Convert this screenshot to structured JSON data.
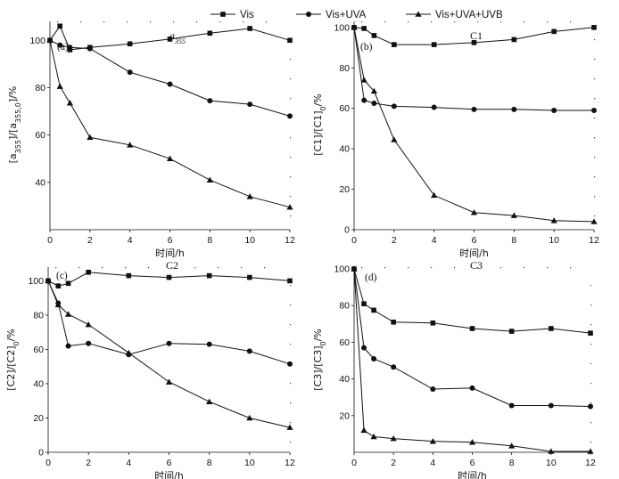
{
  "legend": [
    {
      "name": "Vis",
      "marker": "square"
    },
    {
      "name": "Vis+UVA",
      "marker": "circle"
    },
    {
      "name": "Vis+UVA+UVB",
      "marker": "triangle"
    }
  ],
  "chart_data": [
    {
      "type": "line",
      "panel": "(a)",
      "title": "a355",
      "title_main": "a",
      "title_sub": "355",
      "xlabel": "时间/h",
      "ylabel_parts": [
        {
          "t": "[a",
          "italic_idx": 1
        },
        {
          "t": "355",
          "sub": true
        },
        {
          "t": "]/[a"
        },
        {
          "t": "355,0",
          "sub": true
        },
        {
          "t": "]/%"
        }
      ],
      "xlim": [
        0,
        12
      ],
      "ylim": [
        20,
        108
      ],
      "xticks": [
        0,
        2,
        4,
        6,
        8,
        10,
        12
      ],
      "yticks": [
        40,
        60,
        80,
        100
      ],
      "series": [
        {
          "name": "Vis",
          "marker": "square",
          "x": [
            0,
            0.5,
            1,
            2,
            4,
            6,
            8,
            10,
            12
          ],
          "values": [
            100,
            106,
            96,
            97,
            98.5,
            100.5,
            103,
            105,
            100
          ]
        },
        {
          "name": "Vis+UVA",
          "marker": "circle",
          "x": [
            0,
            0.5,
            1,
            2,
            4,
            6,
            8,
            10,
            12
          ],
          "values": [
            100,
            98,
            97,
            96.5,
            86.5,
            81.5,
            74.5,
            73,
            68
          ]
        },
        {
          "name": "Vis+UVA+UVB",
          "marker": "triangle",
          "x": [
            0,
            0.5,
            1,
            2,
            4,
            6,
            8,
            10,
            12
          ],
          "values": [
            100,
            80.5,
            73.5,
            59,
            55.8,
            50,
            41,
            34,
            29.5
          ]
        }
      ]
    },
    {
      "type": "line",
      "panel": "(b)",
      "title": "C1",
      "xlabel": "时间/h",
      "ylabel_parts": [
        {
          "t": "[C1]/[C1]"
        },
        {
          "t": "0",
          "sub": true
        },
        {
          "t": "/%"
        }
      ],
      "xlim": [
        0,
        12
      ],
      "ylim": [
        0,
        103
      ],
      "xticks": [
        0,
        2,
        4,
        6,
        8,
        10,
        12
      ],
      "yticks": [
        0,
        20,
        40,
        60,
        80,
        100
      ],
      "series": [
        {
          "name": "Vis",
          "marker": "square",
          "x": [
            0,
            0.5,
            1,
            2,
            4,
            6,
            8,
            10,
            12
          ],
          "values": [
            100,
            99.5,
            96,
            91.5,
            91.5,
            92.5,
            94,
            98,
            100
          ]
        },
        {
          "name": "Vis+UVA",
          "marker": "circle",
          "x": [
            0,
            0.5,
            1,
            2,
            4,
            6,
            8,
            10,
            12
          ],
          "values": [
            100,
            64,
            62.5,
            61,
            60.5,
            59.5,
            59.5,
            59,
            59
          ]
        },
        {
          "name": "Vis+UVA+UVB",
          "marker": "triangle",
          "x": [
            0,
            0.5,
            1,
            2,
            4,
            6,
            8,
            10,
            12
          ],
          "values": [
            100,
            74,
            68.5,
            44.5,
            17,
            8.5,
            7,
            4.5,
            4
          ]
        }
      ]
    },
    {
      "type": "line",
      "panel": "(c)",
      "title": "C2",
      "xlabel": "时间/h",
      "ylabel_parts": [
        {
          "t": "[C2]/[C2]"
        },
        {
          "t": "0",
          "sub": true
        },
        {
          "t": "/%"
        }
      ],
      "xlim": [
        0,
        12
      ],
      "ylim": [
        0,
        108
      ],
      "xticks": [
        0,
        2,
        4,
        6,
        8,
        10,
        12
      ],
      "yticks": [
        0,
        20,
        40,
        60,
        80,
        100
      ],
      "series": [
        {
          "name": "Vis",
          "marker": "square",
          "x": [
            0,
            0.5,
            1,
            2,
            4,
            6,
            8,
            10,
            12
          ],
          "values": [
            100,
            97,
            98.5,
            105,
            103,
            102,
            103,
            102,
            100
          ]
        },
        {
          "name": "Vis+UVA",
          "marker": "circle",
          "x": [
            0,
            0.5,
            1,
            2,
            4,
            6,
            8,
            10,
            12
          ],
          "values": [
            100,
            87,
            62,
            63.5,
            57,
            63.5,
            63,
            59,
            51.5
          ]
        },
        {
          "name": "Vis+UVA+UVB",
          "marker": "triangle",
          "x": [
            0,
            0.5,
            1,
            2,
            4,
            6,
            8,
            10,
            12
          ],
          "values": [
            100,
            86,
            80.5,
            74.5,
            58,
            41,
            29.5,
            20,
            14.5
          ]
        }
      ]
    },
    {
      "type": "line",
      "panel": "(d)",
      "title": "C3",
      "xlabel": "时间/h",
      "ylabel_parts": [
        {
          "t": "[C3]/[C3]"
        },
        {
          "t": "0",
          "sub": true
        },
        {
          "t": "/%"
        }
      ],
      "xlim": [
        0,
        12
      ],
      "ylim": [
        0,
        101
      ],
      "xticks": [
        0,
        2,
        4,
        6,
        8,
        10,
        12
      ],
      "yticks": [
        20,
        40,
        60,
        80,
        100
      ],
      "series": [
        {
          "name": "Vis",
          "marker": "square",
          "x": [
            0,
            0.5,
            1,
            2,
            4,
            6,
            8,
            10,
            12
          ],
          "values": [
            100,
            81,
            77.5,
            71,
            70.5,
            67.5,
            66,
            67.5,
            65
          ]
        },
        {
          "name": "Vis+UVA",
          "marker": "circle",
          "x": [
            0,
            0.5,
            1,
            2,
            4,
            6,
            8,
            10,
            12
          ],
          "values": [
            100,
            57,
            51,
            46.5,
            34.5,
            35,
            25.5,
            25.5,
            25
          ]
        },
        {
          "name": "Vis+UVA+UVB",
          "marker": "triangle",
          "x": [
            0,
            0.5,
            1,
            2,
            4,
            6,
            8,
            10,
            12
          ],
          "values": [
            100,
            12,
            8.5,
            7.5,
            6,
            5.5,
            3.5,
            0.5,
            0.5
          ]
        }
      ]
    }
  ]
}
